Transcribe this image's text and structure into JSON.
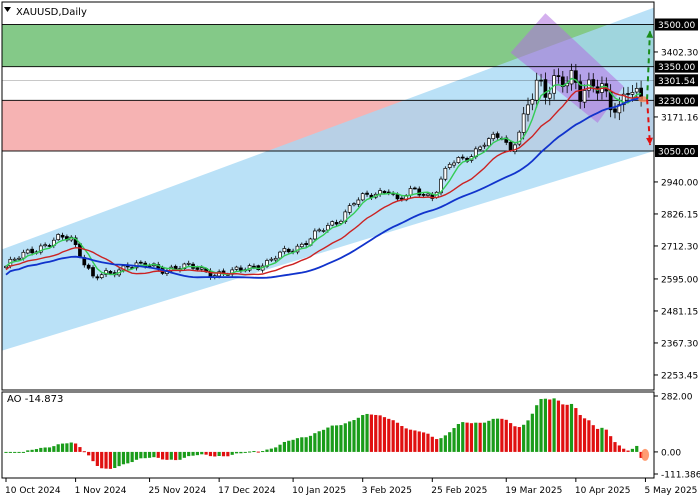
{
  "chart_data": {
    "type": "candlestick",
    "symbol_label": "XAUUSD,Daily",
    "x_tick_labels": [
      "10 Oct 2024",
      "1 Nov 2024",
      "25 Nov 2024",
      "17 Dec 2024",
      "10 Jan 2025",
      "3 Feb 2025",
      "25 Feb 2025",
      "19 Mar 2025",
      "10 Apr 2025",
      "5 May 2025"
    ],
    "ylim": [
      2200,
      3580
    ],
    "y_tick_labels": [
      "3402.30",
      "3171.16",
      "2940.00",
      "2826.15",
      "2712.30",
      "2595.00",
      "2481.15",
      "2367.30",
      "2253.45"
    ],
    "y_ticks": [
      3402.3,
      3171.16,
      2940.0,
      2826.15,
      2712.3,
      2595.0,
      2481.15,
      2367.3,
      2253.45
    ],
    "price_levels": [
      {
        "value": 3500.0,
        "label": "3500.00"
      },
      {
        "value": 3350.0,
        "label": "3350.00"
      },
      {
        "value": 3301.54,
        "label": "3301.54"
      },
      {
        "value": 3230.0,
        "label": "3230.00"
      },
      {
        "value": 3050.0,
        "label": "3050.00"
      }
    ],
    "zones": [
      {
        "name": "resistance zone",
        "from": 3350,
        "to": 3500,
        "color": "#6fbf73"
      },
      {
        "name": "support zone",
        "from": 3050,
        "to": 3230,
        "color": "#f4a6a6"
      }
    ],
    "trend_channel": {
      "lower_start": 2340,
      "lower_end": 3050,
      "upper_start": 2700,
      "upper_end": 3560,
      "color": "#a6d8f5"
    },
    "close_anchors": [
      [
        0,
        2640
      ],
      [
        6,
        2700
      ],
      [
        12,
        2735
      ],
      [
        15,
        2740
      ],
      [
        18,
        2660
      ],
      [
        20,
        2600
      ],
      [
        24,
        2610
      ],
      [
        28,
        2650
      ],
      [
        32,
        2640
      ],
      [
        36,
        2630
      ],
      [
        40,
        2640
      ],
      [
        44,
        2630
      ],
      [
        48,
        2615
      ],
      [
        52,
        2615
      ],
      [
        56,
        2640
      ],
      [
        60,
        2650
      ],
      [
        64,
        2690
      ],
      [
        68,
        2720
      ],
      [
        72,
        2760
      ],
      [
        76,
        2800
      ],
      [
        80,
        2870
      ],
      [
        84,
        2890
      ],
      [
        88,
        2920
      ],
      [
        90,
        2870
      ],
      [
        94,
        2910
      ],
      [
        98,
        2890
      ],
      [
        102,
        3000
      ],
      [
        106,
        3030
      ],
      [
        110,
        3080
      ],
      [
        114,
        3100
      ],
      [
        116,
        3050
      ],
      [
        118,
        3130
      ],
      [
        122,
        3280
      ],
      [
        124,
        3240
      ],
      [
        126,
        3320
      ],
      [
        130,
        3310
      ],
      [
        132,
        3230
      ],
      [
        135,
        3290
      ],
      [
        137,
        3300
      ],
      [
        139,
        3220
      ],
      [
        141,
        3180
      ],
      [
        143,
        3260
      ],
      [
        146,
        3250
      ]
    ],
    "moving_averages": [
      {
        "period": 5,
        "color": "#33cc55"
      },
      {
        "period": 13,
        "color": "#cc2222"
      },
      {
        "period": 26,
        "color": "#1133cc"
      }
    ],
    "forecast_targets": [
      {
        "direction": "up",
        "target": 3500,
        "color": "#1a8c1a"
      },
      {
        "direction": "down",
        "target": 3050,
        "color": "#e01010"
      }
    ],
    "indicator": {
      "label": "AO -14.873",
      "ylim": [
        -111.386,
        282.0
      ],
      "tick_labels": [
        "282.00",
        "0.00",
        "-111.386"
      ],
      "up_color": "#1a9c1a",
      "down_color": "#e01010"
    }
  }
}
